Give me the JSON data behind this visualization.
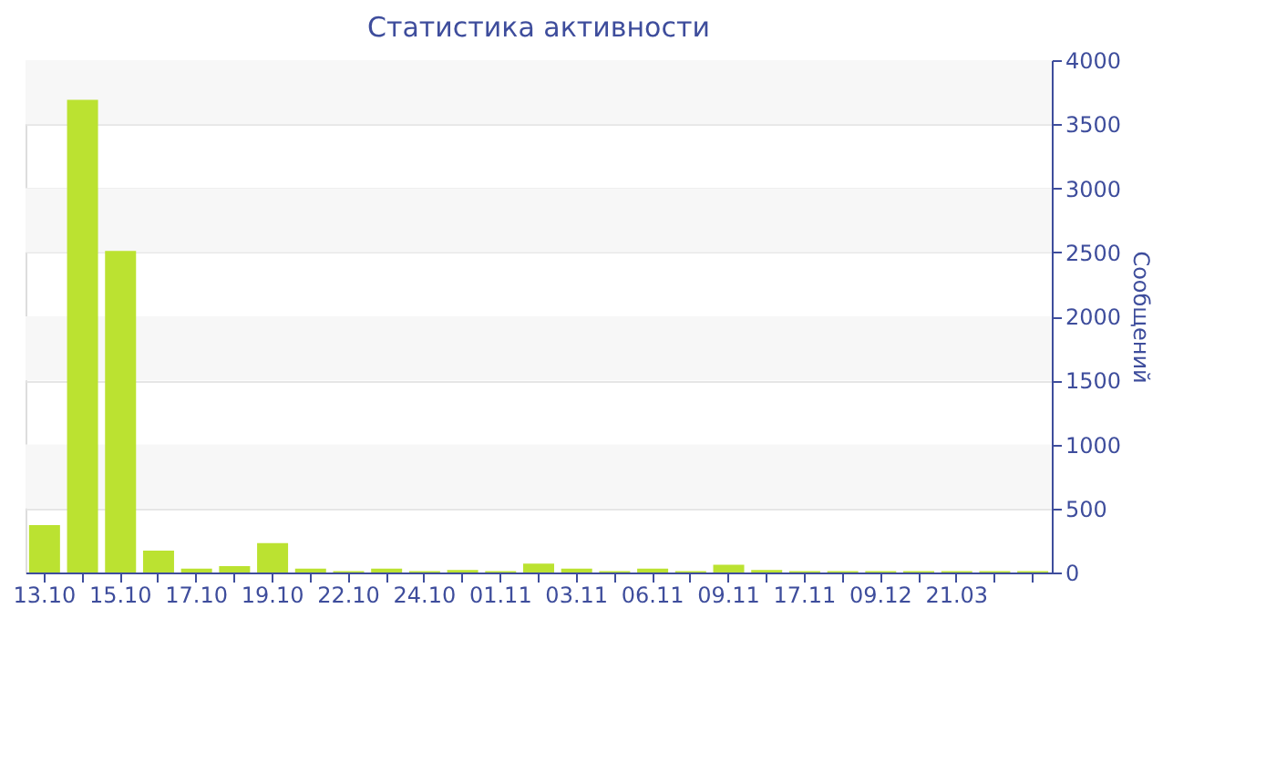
{
  "chart_data": {
    "type": "bar",
    "title": "Статистика активности",
    "ylabel": "Сообщений",
    "categories": [
      "13.10",
      null,
      "15.10",
      null,
      "17.10",
      null,
      "19.10",
      null,
      "22.10",
      null,
      "24.10",
      null,
      "01.11",
      null,
      "03.11",
      null,
      "06.11",
      null,
      "09.11",
      null,
      "17.11",
      null,
      "09.12",
      null,
      "21.03",
      null,
      null
    ],
    "values": [
      370,
      3690,
      2510,
      170,
      30,
      50,
      230,
      30,
      10,
      30,
      10,
      20,
      10,
      70,
      30,
      10,
      30,
      10,
      60,
      20,
      10,
      10,
      10,
      10,
      10,
      10,
      10
    ],
    "color": "#bbe231",
    "ylim": [
      0,
      4000
    ],
    "yticks": [
      0,
      500,
      1000,
      1500,
      2000,
      2500,
      3000,
      3500,
      4000
    ],
    "grid": "y"
  }
}
